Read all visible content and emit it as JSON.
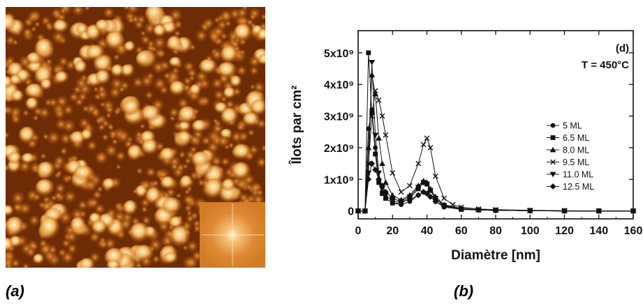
{
  "panel_a": {
    "caption": "(a)",
    "image_colors": {
      "dark": "#3a1602",
      "mid": "#a14b08",
      "bright": "#f5b760",
      "peak": "#fff4d0"
    },
    "inset_colors": {
      "background": "#d8822e",
      "center": "#fff6dc"
    }
  },
  "panel_b": {
    "caption": "(b)",
    "annotations": {
      "panel_label": "(d)",
      "temperature": "T = 450°C"
    }
  },
  "chart_data": {
    "type": "line",
    "xlabel": "Diamètre [nm]",
    "ylabel": "Îlots par cm²",
    "xlim": [
      0,
      160
    ],
    "ylim": [
      -250000000,
      5700000000
    ],
    "x_ticks": [
      0,
      20,
      40,
      60,
      80,
      100,
      120,
      140,
      160
    ],
    "x_tick_labels": [
      "0",
      "20",
      "40",
      "60",
      "80",
      "100",
      "120",
      "140",
      "160"
    ],
    "y_ticks": [
      0,
      1000000000,
      2000000000,
      3000000000,
      4000000000,
      5000000000
    ],
    "y_tick_labels": [
      "0",
      "1x10⁹",
      "2x10⁹",
      "3x10⁹",
      "4x10⁹",
      "5x10⁹"
    ],
    "legend_position": "right",
    "grid": false,
    "series": [
      {
        "name": "5 ML",
        "marker": "circle",
        "x": [
          0,
          4,
          6,
          8,
          10,
          12,
          14,
          16,
          20,
          25,
          30,
          35,
          38,
          40,
          42,
          45,
          50,
          60,
          70,
          80,
          100,
          120,
          140,
          160
        ],
        "y": [
          0,
          0,
          2600000000.0,
          3200000000.0,
          2000000000.0,
          1000000000.0,
          600000000.0,
          400000000.0,
          250000000.0,
          200000000.0,
          300000000.0,
          500000000.0,
          600000000.0,
          550000000.0,
          450000000.0,
          300000000.0,
          120000000.0,
          50000000.0,
          30000000.0,
          20000000.0,
          10000000.0,
          0,
          0,
          0
        ]
      },
      {
        "name": "6.5 ML",
        "marker": "square",
        "x": [
          0,
          4,
          6,
          8,
          10,
          12,
          14,
          16,
          20,
          25,
          30,
          35,
          38,
          40,
          42,
          45,
          50,
          60,
          70,
          80,
          100,
          120,
          140,
          160
        ],
        "y": [
          0,
          0,
          5000000000.0,
          3100000000.0,
          1800000000.0,
          900000000.0,
          550000000.0,
          400000000.0,
          250000000.0,
          250000000.0,
          400000000.0,
          700000000.0,
          900000000.0,
          850000000.0,
          650000000.0,
          400000000.0,
          150000000.0,
          50000000.0,
          30000000.0,
          20000000.0,
          10000000.0,
          0,
          0,
          0
        ]
      },
      {
        "name": "8.0 ML",
        "marker": "triangle-up",
        "x": [
          0,
          4,
          6,
          8,
          10,
          12,
          14,
          16,
          20,
          25,
          30,
          35,
          38,
          40,
          42,
          45,
          50,
          60,
          70,
          80,
          100,
          120,
          140,
          160
        ],
        "y": [
          0,
          0,
          2000000000.0,
          4300000000.0,
          3700000000.0,
          2300000000.0,
          1500000000.0,
          900000000.0,
          500000000.0,
          350000000.0,
          500000000.0,
          800000000.0,
          950000000.0,
          900000000.0,
          700000000.0,
          450000000.0,
          200000000.0,
          80000000.0,
          40000000.0,
          20000000.0,
          10000000.0,
          0,
          0,
          0
        ]
      },
      {
        "name": "9.5 ML",
        "marker": "x",
        "x": [
          0,
          4,
          6,
          8,
          10,
          12,
          14,
          16,
          20,
          25,
          30,
          35,
          38,
          40,
          42,
          45,
          50,
          55,
          60,
          70,
          80,
          100,
          120,
          140,
          160
        ],
        "y": [
          0,
          0,
          1500000000.0,
          3000000000.0,
          3800000000.0,
          3500000000.0,
          3000000000.0,
          2400000000.0,
          1200000000.0,
          600000000.0,
          800000000.0,
          1500000000.0,
          2100000000.0,
          2300000000.0,
          2000000000.0,
          1100000000.0,
          400000000.0,
          200000000.0,
          120000000.0,
          60000000.0,
          40000000.0,
          20000000.0,
          10000000.0,
          0,
          0
        ]
      },
      {
        "name": "11.0 ML",
        "marker": "triangle-down",
        "x": [
          0,
          4,
          6,
          8,
          10,
          12,
          14,
          16,
          20,
          25,
          30,
          35,
          38,
          40,
          42,
          45,
          50,
          60,
          70,
          80,
          100,
          120,
          140,
          160
        ],
        "y": [
          0,
          0,
          1200000000.0,
          4700000000.0,
          2400000000.0,
          1200000000.0,
          700000000.0,
          500000000.0,
          300000000.0,
          300000000.0,
          450000000.0,
          750000000.0,
          900000000.0,
          850000000.0,
          650000000.0,
          400000000.0,
          180000000.0,
          60000000.0,
          30000000.0,
          20000000.0,
          10000000.0,
          0,
          0,
          0
        ]
      },
      {
        "name": "12.5 ML",
        "marker": "diamond",
        "x": [
          0,
          4,
          6,
          8,
          10,
          12,
          14,
          16,
          20,
          25,
          30,
          35,
          38,
          40,
          42,
          45,
          50,
          60,
          70,
          80,
          100,
          120,
          140,
          160
        ],
        "y": [
          0,
          0,
          1000000000.0,
          1500000000.0,
          1300000000.0,
          1000000000.0,
          800000000.0,
          600000000.0,
          400000000.0,
          300000000.0,
          350000000.0,
          500000000.0,
          600000000.0,
          550000000.0,
          450000000.0,
          300000000.0,
          150000000.0,
          60000000.0,
          30000000.0,
          20000000.0,
          10000000.0,
          0,
          0,
          0
        ]
      }
    ]
  }
}
